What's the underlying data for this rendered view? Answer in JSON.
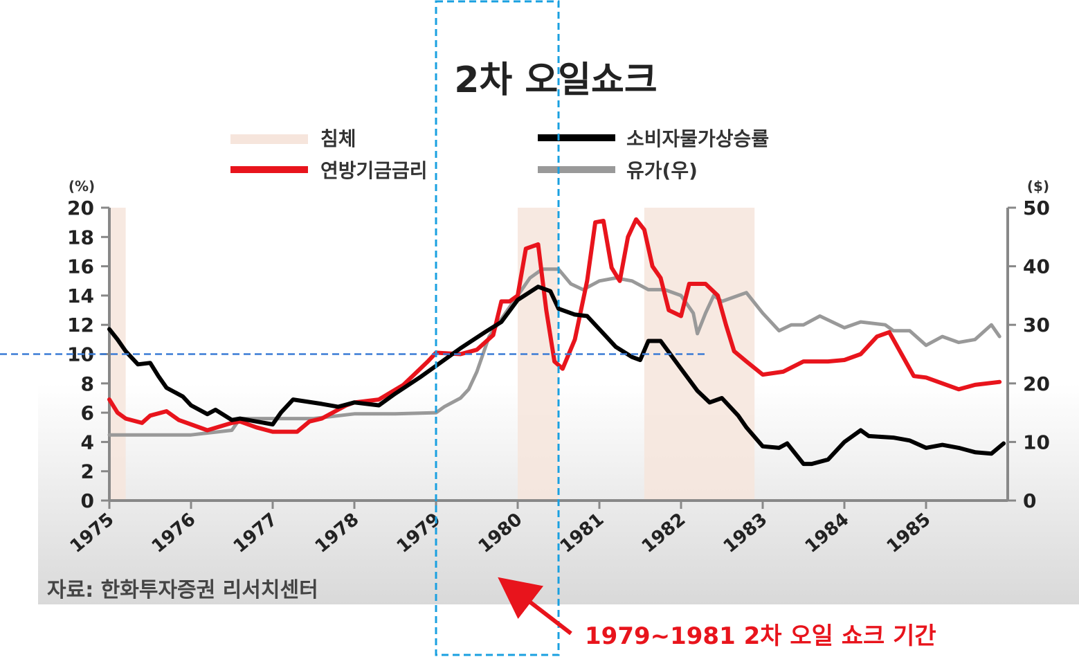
{
  "chart_data": {
    "type": "line",
    "title": "2차 오일쇼크",
    "source": "자료: 한화투자증권 리서치센터",
    "left_axis": {
      "unit": "(%)",
      "min": 0,
      "max": 20,
      "ticks": [
        0,
        2,
        4,
        6,
        8,
        10,
        12,
        14,
        16,
        18,
        20
      ]
    },
    "right_axis": {
      "unit": "($)",
      "min": 0,
      "max": 50,
      "ticks": [
        0,
        10,
        20,
        30,
        40,
        50
      ]
    },
    "x_axis": {
      "min": 1975,
      "max": 1986,
      "ticks": [
        "1975",
        "1976",
        "1977",
        "1978",
        "1979",
        "1980",
        "1981",
        "1982",
        "1983",
        "1984",
        "1985"
      ]
    },
    "legend": [
      {
        "label": "침체",
        "color": "#f6e5dc",
        "kind": "band"
      },
      {
        "label": "소비자물가상승률",
        "color": "#000000",
        "kind": "line"
      },
      {
        "label": "연방기금금리",
        "color": "#e8141c",
        "kind": "line"
      },
      {
        "label": "유가(우)",
        "color": "#999999",
        "kind": "line"
      }
    ],
    "recessions": [
      [
        1975.0,
        1975.2
      ],
      [
        1980.0,
        1980.5
      ],
      [
        1981.55,
        1982.9
      ]
    ],
    "series": [
      {
        "name": "유가(우)",
        "axis": "right",
        "color": "#999999",
        "points": [
          [
            1975.0,
            11.2
          ],
          [
            1975.5,
            11.2
          ],
          [
            1976.0,
            11.2
          ],
          [
            1976.5,
            12.0
          ],
          [
            1976.6,
            14.0
          ],
          [
            1977.0,
            14.0
          ],
          [
            1977.5,
            14.0
          ],
          [
            1978.0,
            14.8
          ],
          [
            1978.5,
            14.8
          ],
          [
            1979.0,
            15.0
          ],
          [
            1979.1,
            16.0
          ],
          [
            1979.3,
            17.5
          ],
          [
            1979.4,
            19.0
          ],
          [
            1979.5,
            22.0
          ],
          [
            1979.65,
            28.0
          ],
          [
            1979.85,
            32.0
          ],
          [
            1980.0,
            35.0
          ],
          [
            1980.15,
            38.0
          ],
          [
            1980.3,
            39.5
          ],
          [
            1980.5,
            39.5
          ],
          [
            1980.65,
            37.0
          ],
          [
            1980.8,
            36.0
          ],
          [
            1981.0,
            37.5
          ],
          [
            1981.2,
            38.0
          ],
          [
            1981.4,
            37.5
          ],
          [
            1981.6,
            36.0
          ],
          [
            1981.8,
            36.0
          ],
          [
            1982.0,
            35.0
          ],
          [
            1982.15,
            32.0
          ],
          [
            1982.2,
            28.5
          ],
          [
            1982.3,
            32.0
          ],
          [
            1982.4,
            35.0
          ],
          [
            1982.5,
            34.0
          ],
          [
            1982.6,
            34.5
          ],
          [
            1982.8,
            35.5
          ],
          [
            1983.0,
            32.0
          ],
          [
            1983.2,
            29.0
          ],
          [
            1983.35,
            30.0
          ],
          [
            1983.5,
            30.0
          ],
          [
            1983.7,
            31.5
          ],
          [
            1984.0,
            29.5
          ],
          [
            1984.2,
            30.5
          ],
          [
            1984.5,
            30.0
          ],
          [
            1984.6,
            29.0
          ],
          [
            1984.8,
            29.0
          ],
          [
            1985.0,
            26.5
          ],
          [
            1985.2,
            28.0
          ],
          [
            1985.4,
            27.0
          ],
          [
            1985.6,
            27.5
          ],
          [
            1985.8,
            30.0
          ],
          [
            1985.9,
            28.0
          ]
        ]
      },
      {
        "name": "연방기금금리",
        "axis": "left",
        "color": "#e8141c",
        "points": [
          [
            1975.0,
            6.9
          ],
          [
            1975.1,
            6.0
          ],
          [
            1975.2,
            5.6
          ],
          [
            1975.4,
            5.3
          ],
          [
            1975.5,
            5.8
          ],
          [
            1975.7,
            6.1
          ],
          [
            1975.85,
            5.5
          ],
          [
            1976.0,
            5.2
          ],
          [
            1976.2,
            4.8
          ],
          [
            1976.5,
            5.3
          ],
          [
            1976.6,
            5.4
          ],
          [
            1976.8,
            5.0
          ],
          [
            1977.0,
            4.7
          ],
          [
            1977.3,
            4.7
          ],
          [
            1977.45,
            5.4
          ],
          [
            1977.6,
            5.6
          ],
          [
            1977.9,
            6.5
          ],
          [
            1978.0,
            6.7
          ],
          [
            1978.3,
            6.9
          ],
          [
            1978.6,
            7.9
          ],
          [
            1978.9,
            9.5
          ],
          [
            1979.0,
            10.1
          ],
          [
            1979.3,
            10.0
          ],
          [
            1979.5,
            10.3
          ],
          [
            1979.7,
            11.3
          ],
          [
            1979.8,
            13.6
          ],
          [
            1979.9,
            13.6
          ],
          [
            1980.0,
            14.0
          ],
          [
            1980.1,
            17.2
          ],
          [
            1980.25,
            17.5
          ],
          [
            1980.35,
            13.0
          ],
          [
            1980.45,
            9.5
          ],
          [
            1980.55,
            9.0
          ],
          [
            1980.7,
            11.0
          ],
          [
            1980.85,
            15.0
          ],
          [
            1980.95,
            19.0
          ],
          [
            1981.05,
            19.1
          ],
          [
            1981.15,
            15.9
          ],
          [
            1981.25,
            15.0
          ],
          [
            1981.35,
            18.0
          ],
          [
            1981.45,
            19.2
          ],
          [
            1981.55,
            18.5
          ],
          [
            1981.65,
            16.0
          ],
          [
            1981.75,
            15.2
          ],
          [
            1981.85,
            13.0
          ],
          [
            1982.0,
            12.6
          ],
          [
            1982.1,
            14.8
          ],
          [
            1982.3,
            14.8
          ],
          [
            1982.45,
            14.0
          ],
          [
            1982.55,
            12.0
          ],
          [
            1982.65,
            10.2
          ],
          [
            1982.8,
            9.5
          ],
          [
            1983.0,
            8.6
          ],
          [
            1983.25,
            8.8
          ],
          [
            1983.5,
            9.5
          ],
          [
            1983.8,
            9.5
          ],
          [
            1984.0,
            9.6
          ],
          [
            1984.2,
            10.0
          ],
          [
            1984.4,
            11.2
          ],
          [
            1984.55,
            11.5
          ],
          [
            1984.7,
            10.0
          ],
          [
            1984.85,
            8.5
          ],
          [
            1985.0,
            8.4
          ],
          [
            1985.2,
            8.0
          ],
          [
            1985.4,
            7.6
          ],
          [
            1985.6,
            7.9
          ],
          [
            1985.9,
            8.1
          ]
        ]
      },
      {
        "name": "소비자물가상승률",
        "axis": "left",
        "color": "#000000",
        "points": [
          [
            1975.0,
            11.7
          ],
          [
            1975.1,
            11.0
          ],
          [
            1975.2,
            10.2
          ],
          [
            1975.35,
            9.3
          ],
          [
            1975.5,
            9.4
          ],
          [
            1975.6,
            8.5
          ],
          [
            1975.7,
            7.7
          ],
          [
            1975.9,
            7.1
          ],
          [
            1976.0,
            6.5
          ],
          [
            1976.2,
            5.9
          ],
          [
            1976.3,
            6.2
          ],
          [
            1976.5,
            5.5
          ],
          [
            1976.6,
            5.6
          ],
          [
            1976.8,
            5.4
          ],
          [
            1977.0,
            5.2
          ],
          [
            1977.1,
            6.0
          ],
          [
            1977.25,
            6.9
          ],
          [
            1977.6,
            6.6
          ],
          [
            1977.8,
            6.4
          ],
          [
            1978.0,
            6.7
          ],
          [
            1978.3,
            6.5
          ],
          [
            1978.5,
            7.3
          ],
          [
            1978.8,
            8.4
          ],
          [
            1979.0,
            9.2
          ],
          [
            1979.3,
            10.4
          ],
          [
            1979.6,
            11.5
          ],
          [
            1979.8,
            12.2
          ],
          [
            1980.0,
            13.7
          ],
          [
            1980.25,
            14.6
          ],
          [
            1980.4,
            14.3
          ],
          [
            1980.5,
            13.1
          ],
          [
            1980.7,
            12.7
          ],
          [
            1980.85,
            12.6
          ],
          [
            1981.0,
            11.7
          ],
          [
            1981.2,
            10.5
          ],
          [
            1981.4,
            9.8
          ],
          [
            1981.5,
            9.6
          ],
          [
            1981.6,
            10.9
          ],
          [
            1981.75,
            10.9
          ],
          [
            1982.0,
            9.0
          ],
          [
            1982.2,
            7.5
          ],
          [
            1982.35,
            6.7
          ],
          [
            1982.5,
            7.0
          ],
          [
            1982.7,
            5.8
          ],
          [
            1982.8,
            5.0
          ],
          [
            1983.0,
            3.7
          ],
          [
            1983.2,
            3.6
          ],
          [
            1983.3,
            3.9
          ],
          [
            1983.5,
            2.5
          ],
          [
            1983.6,
            2.5
          ],
          [
            1983.8,
            2.8
          ],
          [
            1984.0,
            4.0
          ],
          [
            1984.2,
            4.8
          ],
          [
            1984.3,
            4.4
          ],
          [
            1984.6,
            4.3
          ],
          [
            1984.8,
            4.1
          ],
          [
            1985.0,
            3.6
          ],
          [
            1985.2,
            3.8
          ],
          [
            1985.4,
            3.6
          ],
          [
            1985.6,
            3.3
          ],
          [
            1985.8,
            3.2
          ],
          [
            1985.95,
            3.9
          ]
        ]
      }
    ],
    "annotations": [
      {
        "type": "vertical-band",
        "x_start": 1979.0,
        "x_end": 1980.5,
        "style": "dashed-box",
        "color": "#1aa0e0"
      },
      {
        "type": "horizontal-line",
        "y": 10,
        "axis": "left",
        "style": "dashed",
        "color": "#3a7bd5"
      },
      {
        "type": "arrow-label",
        "text": "1979~1981 2차 오일 쇼크 기간",
        "color": "#e8141c"
      }
    ]
  }
}
